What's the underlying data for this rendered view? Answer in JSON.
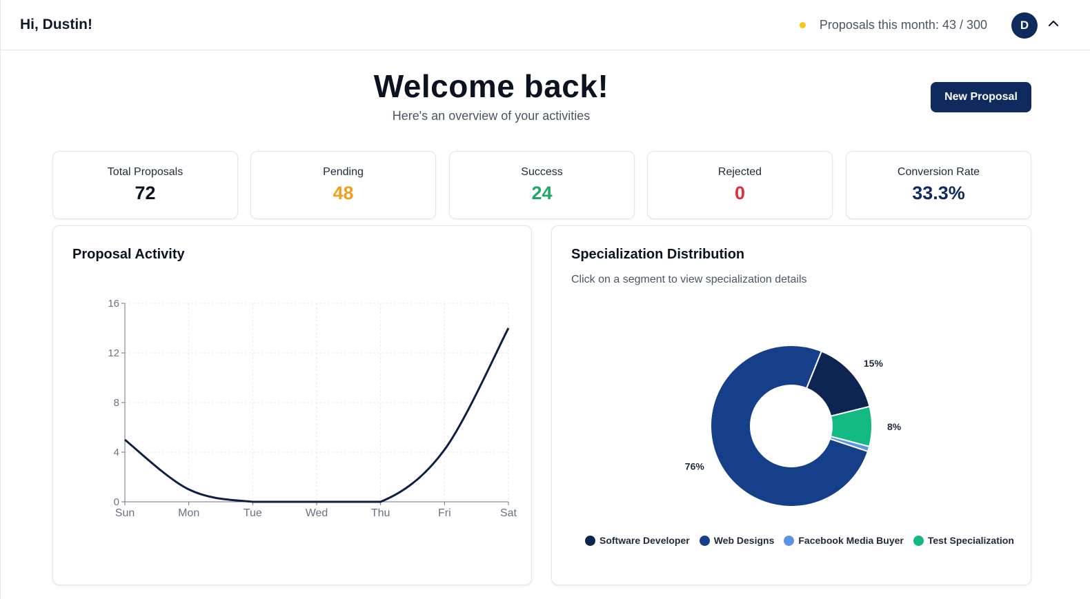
{
  "header": {
    "greeting": "Hi, Dustin!",
    "usage_text": "Proposals this month: 43 / 300",
    "avatar_initial": "D"
  },
  "hero": {
    "title": "Welcome back!",
    "subtitle": "Here's an overview of your activities",
    "new_button": "New Proposal"
  },
  "stats": [
    {
      "label": "Total Proposals",
      "value": "72",
      "color": "#0b1220"
    },
    {
      "label": "Pending",
      "value": "48",
      "color": "#f0a020"
    },
    {
      "label": "Success",
      "value": "24",
      "color": "#22a565"
    },
    {
      "label": "Rejected",
      "value": "0",
      "color": "#e02d3c"
    },
    {
      "label": "Conversion Rate",
      "value": "33.3%",
      "color": "#0f2a5c"
    }
  ],
  "activity": {
    "title": "Proposal Activity"
  },
  "specialization": {
    "title": "Specialization Distribution",
    "subtitle": "Click on a segment to view specialization details"
  },
  "chart_data": [
    {
      "type": "line",
      "x": [
        "Sun",
        "Mon",
        "Tue",
        "Wed",
        "Thu",
        "Fri",
        "Sat"
      ],
      "series": [
        {
          "values": [
            5,
            1,
            0,
            0,
            0,
            4.2,
            14
          ]
        }
      ],
      "yticks": [
        "0",
        "4",
        "8",
        "12",
        "16"
      ],
      "ylim": [
        0,
        16
      ],
      "grid": true,
      "color": "#0f1e45"
    },
    {
      "type": "pie",
      "donut": true,
      "slices": [
        {
          "label": "Software Developer",
          "value": 15,
          "color": "#0f2551",
          "text": "15%"
        },
        {
          "label": "Test Specialization",
          "value": 8,
          "color": "#12b981",
          "text": "8%"
        },
        {
          "label": "Facebook Media Buyer",
          "value": 1,
          "color": "#5b93e6",
          "text": ""
        },
        {
          "label": "Web Designs",
          "value": 76,
          "color": "#163f8a",
          "text": "76%"
        }
      ],
      "legend": [
        {
          "label": "Software Developer",
          "color": "#0f2551"
        },
        {
          "label": "Web Designs",
          "color": "#163f8a"
        },
        {
          "label": "Facebook Media Buyer",
          "color": "#5b93e6"
        },
        {
          "label": "Test Specialization",
          "color": "#12b981"
        }
      ],
      "legend_position": "bottom"
    }
  ]
}
